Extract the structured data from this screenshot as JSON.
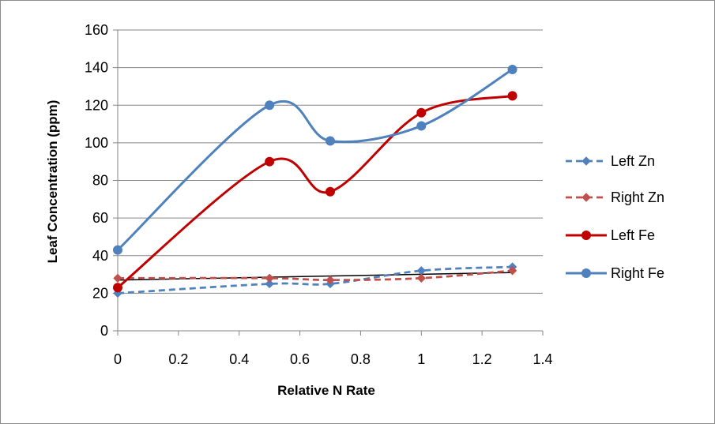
{
  "chart_data": {
    "type": "line",
    "title": "",
    "xlabel": "Relative N Rate",
    "ylabel": "Leaf Concentration (ppm)",
    "xlim": [
      0,
      1.4
    ],
    "ylim": [
      0,
      160
    ],
    "xticks": [
      0,
      0.2,
      0.4,
      0.6,
      0.8,
      1,
      1.2,
      1.4
    ],
    "xtick_labels": [
      "0",
      "0.2",
      "0.4",
      "0.6",
      "0.8",
      "1",
      "1.2",
      "1.4"
    ],
    "yticks": [
      0,
      20,
      40,
      60,
      80,
      100,
      120,
      140,
      160
    ],
    "ytick_labels": [
      "0",
      "20",
      "40",
      "60",
      "80",
      "100",
      "120",
      "140",
      "160"
    ],
    "grid": "horizontal",
    "legend_position": "right",
    "x": [
      0,
      0.5,
      0.7,
      1,
      1.3
    ],
    "series": [
      {
        "name": "Left Zn",
        "values": [
          20,
          25,
          25,
          32,
          34
        ],
        "color": "#4f81bd",
        "line_style": "dashed",
        "marker": "diamond",
        "smooth": true
      },
      {
        "name": "Right Zn",
        "values": [
          28,
          28,
          27,
          28,
          32
        ],
        "color": "#c0504d",
        "line_style": "dashed",
        "marker": "diamond",
        "smooth": true
      },
      {
        "name": "Left Fe",
        "values": [
          23,
          90,
          74,
          116,
          125
        ],
        "color": "#c00000",
        "line_style": "solid",
        "marker": "circle",
        "smooth": true
      },
      {
        "name": "Right Fe",
        "values": [
          43,
          120,
          101,
          109,
          139
        ],
        "color": "#4f81bd",
        "line_style": "solid",
        "marker": "circle",
        "smooth": true
      }
    ],
    "trendline": {
      "x": [
        0,
        1.3
      ],
      "values": [
        27,
        31
      ],
      "color": "#000000"
    }
  }
}
